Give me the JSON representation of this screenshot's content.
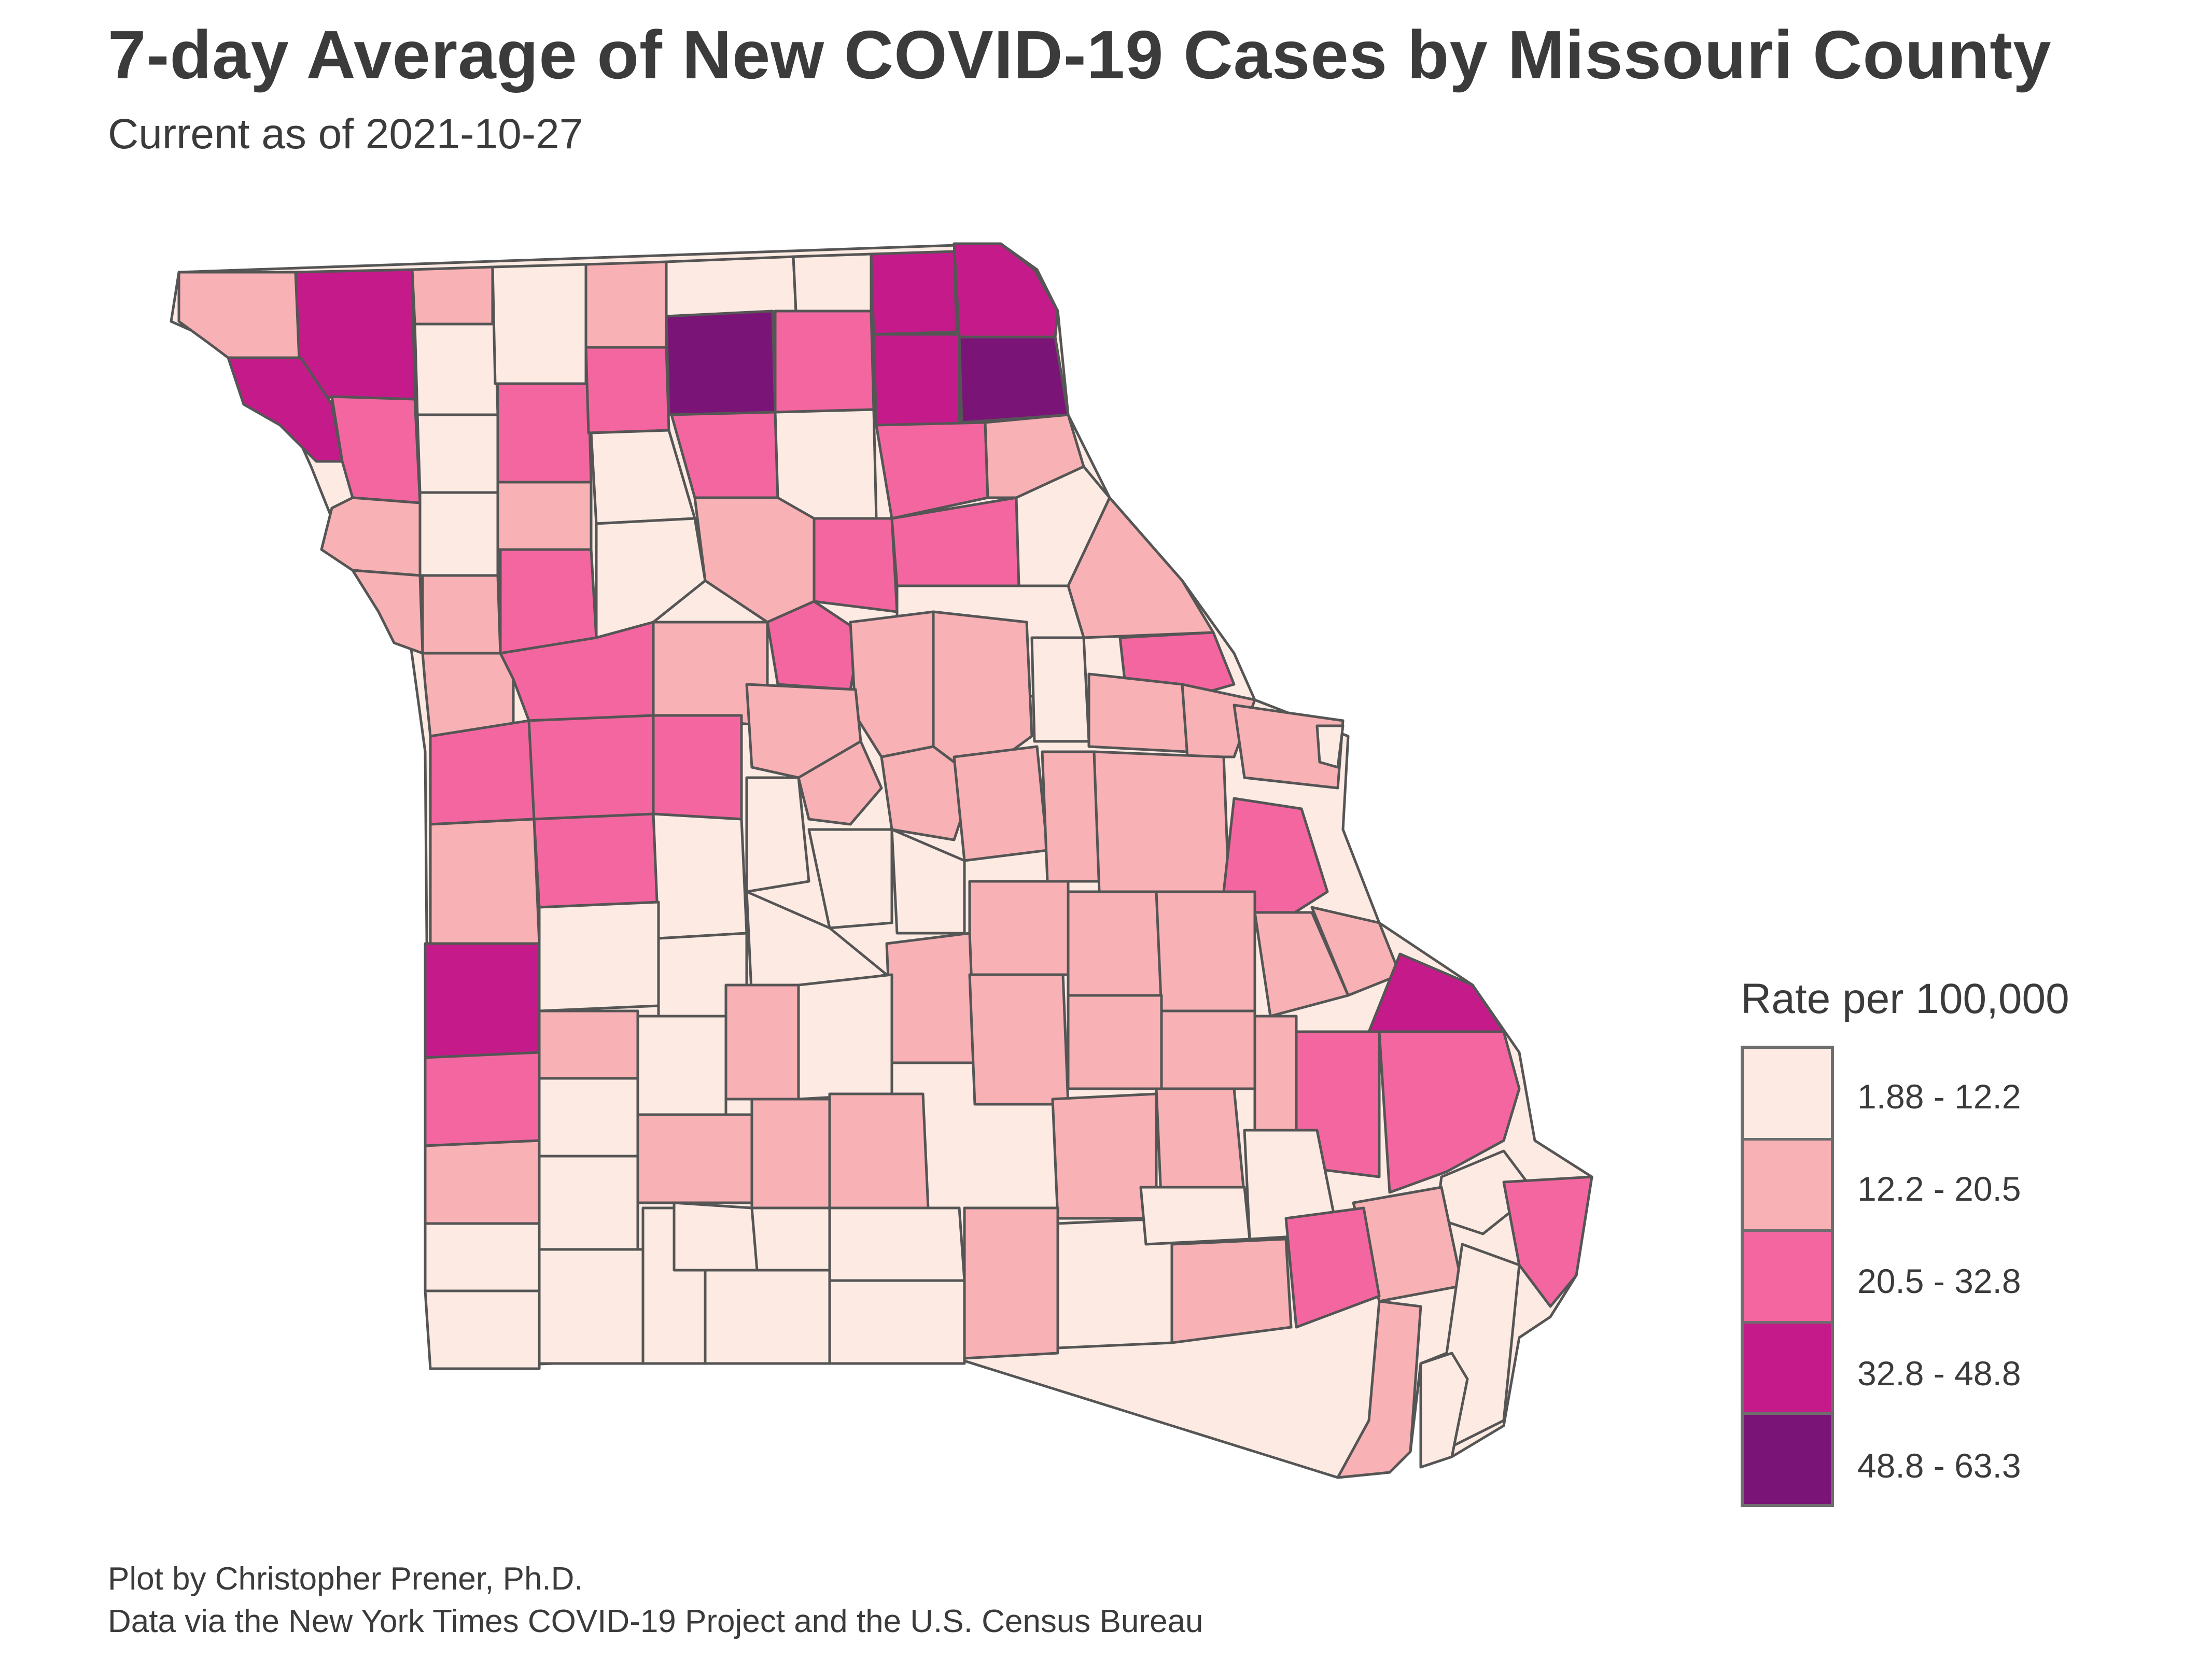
{
  "title": "7-day Average of New COVID-19 Cases by Missouri County",
  "subtitle": "Current as of 2021-10-27",
  "legend": {
    "title": "Rate per 100,000",
    "classes": [
      {
        "label": "1.88 - 12.2",
        "color": "#fdebe3"
      },
      {
        "label": "12.2 - 20.5",
        "color": "#f8b1b4"
      },
      {
        "label": "20.5 - 32.8",
        "color": "#f466a0"
      },
      {
        "label": "32.8 - 48.8",
        "color": "#c51b8a"
      },
      {
        "label": "48.8 - 63.3",
        "color": "#7a1577"
      }
    ]
  },
  "caption": {
    "line1": "Plot by Christopher Prener, Ph.D.",
    "line2": "Data via the New York Times COVID-19 Project and the U.S. Census Bureau"
  }
}
